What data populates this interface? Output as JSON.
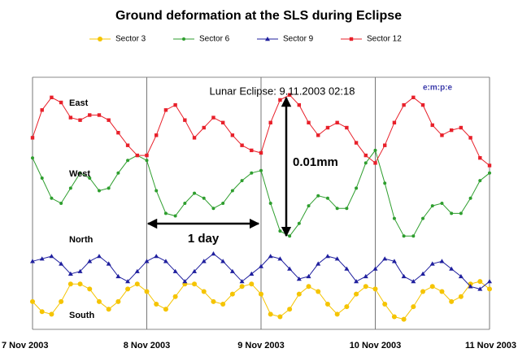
{
  "chart_data": {
    "type": "line",
    "title": "Ground deformation at the SLS during Eclipse",
    "annotations": [
      "Lunar  Eclipse: 9.11.2003 02:18",
      "East",
      "West",
      "North",
      "South",
      "0.01mm",
      "1 day"
    ],
    "x": [
      0,
      2,
      4,
      6,
      8,
      10,
      12,
      14,
      16,
      18,
      20,
      22,
      24,
      26,
      28,
      30,
      32,
      34,
      36,
      38,
      40,
      42,
      44,
      46,
      48,
      50,
      52,
      54,
      56,
      58,
      60,
      62,
      64,
      66,
      68,
      70,
      72,
      74,
      76,
      78,
      80,
      82,
      84,
      86,
      88,
      90,
      92,
      94,
      96
    ],
    "xlim": [
      0,
      96
    ],
    "xticks": [
      {
        "value": 0,
        "label": "7 Nov 2003"
      },
      {
        "value": 24,
        "label": "8 Nov 2003"
      },
      {
        "value": 48,
        "label": "9 Nov 2003"
      },
      {
        "value": 72,
        "label": "10 Nov 2003"
      },
      {
        "value": 96,
        "label": "11 Nov 2003"
      }
    ],
    "ylim": [
      0,
      100
    ],
    "grid": true,
    "legend": "top",
    "series": [
      {
        "name": "Sector 3",
        "color": "#f5c400",
        "marker": "circle",
        "values": [
          11,
          7,
          6,
          11,
          18,
          18,
          16,
          11,
          8,
          11,
          16,
          18,
          15,
          10,
          8,
          13,
          18,
          18,
          15,
          11,
          10,
          14,
          17,
          18,
          14,
          6,
          5,
          8,
          14,
          17,
          15,
          10,
          6,
          9,
          14,
          17,
          16,
          10,
          5,
          4,
          9,
          15,
          17,
          15,
          11,
          13,
          18,
          19,
          16
        ]
      },
      {
        "name": "Sector 6",
        "color": "#2e9e2e",
        "marker": "dot",
        "values": [
          68,
          60,
          52,
          50,
          56,
          62,
          60,
          55,
          56,
          62,
          67,
          69,
          67,
          55,
          46,
          45,
          50,
          54,
          52,
          48,
          50,
          55,
          59,
          62,
          63,
          50,
          39,
          37,
          42,
          49,
          53,
          52,
          48,
          48,
          56,
          66,
          71,
          58,
          44,
          37,
          37,
          44,
          49,
          50,
          46,
          46,
          52,
          59,
          62
        ]
      },
      {
        "name": "Sector 9",
        "color": "#1f1f9e",
        "marker": "triangle",
        "values": [
          27,
          28,
          29,
          26,
          22,
          23,
          27,
          29,
          26,
          21,
          19,
          23,
          27,
          29,
          27,
          23,
          19,
          23,
          27,
          30,
          27,
          23,
          19,
          22,
          25,
          29,
          28,
          24,
          20,
          21,
          26,
          29,
          28,
          24,
          19,
          21,
          24,
          28,
          27,
          21,
          19,
          22,
          26,
          27,
          24,
          21,
          17,
          16,
          19
        ]
      },
      {
        "name": "Sector 12",
        "color": "#e8202a",
        "marker": "square",
        "values": [
          76,
          87,
          92,
          90,
          84,
          83,
          85,
          85,
          83,
          78,
          73,
          69,
          69,
          77,
          87,
          89,
          83,
          76,
          80,
          84,
          82,
          77,
          73,
          71,
          70,
          82,
          91,
          93,
          89,
          82,
          77,
          80,
          82,
          80,
          74,
          69,
          66,
          73,
          82,
          89,
          92,
          89,
          81,
          77,
          79,
          80,
          76,
          68,
          65
        ]
      }
    ]
  }
}
